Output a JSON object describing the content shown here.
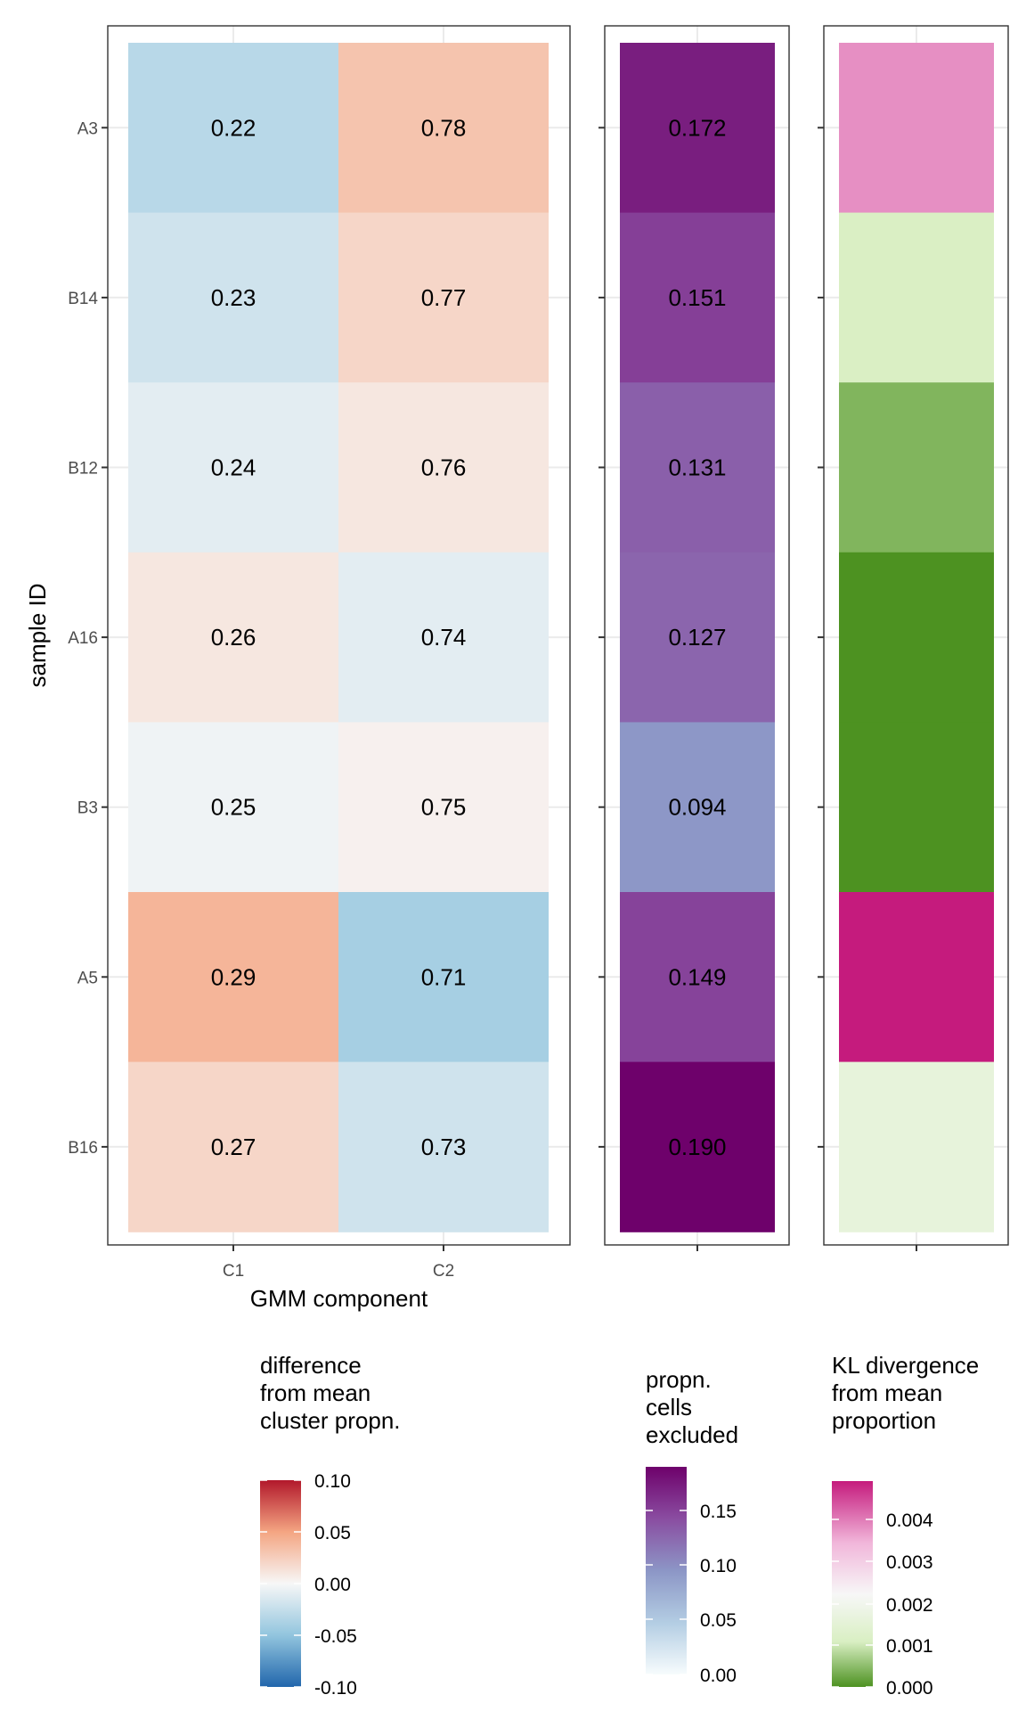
{
  "chart_data": [
    {
      "type": "heatmap",
      "name": "difference from mean cluster propn.",
      "xlabel": "GMM component",
      "ylabel": "sample ID",
      "x_categories": [
        "C1",
        "C2"
      ],
      "y_categories": [
        "A3",
        "B14",
        "B12",
        "A16",
        "B3",
        "A5",
        "B16"
      ],
      "label_values": [
        [
          "0.22",
          "0.78"
        ],
        [
          "0.23",
          "0.77"
        ],
        [
          "0.24",
          "0.76"
        ],
        [
          "0.26",
          "0.74"
        ],
        [
          "0.25",
          "0.75"
        ],
        [
          "0.29",
          "0.71"
        ],
        [
          "0.27",
          "0.73"
        ]
      ],
      "fill_values": [
        [
          -0.031,
          0.031
        ],
        [
          -0.02,
          0.02
        ],
        [
          -0.01,
          0.01
        ],
        [
          0.01,
          -0.01
        ],
        [
          -0.004,
          0.004
        ],
        [
          0.04,
          -0.04
        ],
        [
          0.02,
          -0.02
        ]
      ],
      "legend": {
        "title": [
          "difference",
          "from mean",
          "cluster propn."
        ],
        "ticks": [
          "0.10",
          "0.05",
          "0.00",
          "-0.05",
          "-0.10"
        ],
        "range": [
          -0.1,
          0.1
        ],
        "palette": "RdBu diverging (red = positive, blue = negative)"
      },
      "grid": true
    },
    {
      "type": "heatmap",
      "name": "propn. cells excluded",
      "y_categories": [
        "A3",
        "B14",
        "B12",
        "A16",
        "B3",
        "A5",
        "B16"
      ],
      "values": [
        0.172,
        0.151,
        0.131,
        0.127,
        0.094,
        0.149,
        0.19
      ],
      "labels": [
        "0.172",
        "0.151",
        "0.131",
        "0.127",
        "0.094",
        "0.149",
        "0.190"
      ],
      "legend": {
        "title": [
          "propn.",
          "cells",
          "excluded"
        ],
        "ticks": [
          "0.15",
          "0.10",
          "0.05",
          "0.00"
        ],
        "range": [
          0,
          0.19
        ],
        "palette": "BuPu sequential"
      },
      "grid": true
    },
    {
      "type": "heatmap",
      "name": "KL divergence from mean proportion",
      "y_categories": [
        "A3",
        "B14",
        "B12",
        "A16",
        "B3",
        "A5",
        "B16"
      ],
      "values": [
        0.0038,
        0.0011,
        0.0004,
        0.0,
        0.0,
        0.0049,
        0.0016
      ],
      "legend": {
        "title": [
          "KL divergence",
          "from mean",
          "proportion"
        ],
        "ticks": [
          "0.004",
          "0.003",
          "0.002",
          "0.001",
          "0.000"
        ],
        "range": [
          0,
          0.0049
        ],
        "palette": "PiYG diverging (green = low, pink = high)"
      },
      "grid": true
    }
  ]
}
